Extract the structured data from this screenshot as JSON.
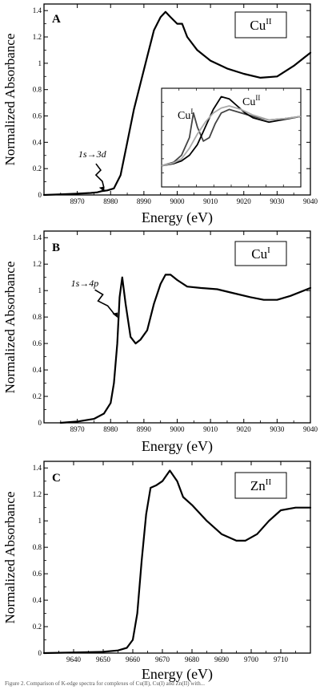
{
  "chart_data": [
    {
      "type": "line",
      "panel_label": "A",
      "badge": {
        "base": "Cu",
        "sup": "II"
      },
      "xlabel": "Energy (eV)",
      "ylabel": "Normalized Absorbance",
      "xlim": [
        8960,
        9040
      ],
      "ylim": [
        0,
        1.45
      ],
      "x_ticks": [
        "8970",
        "8980",
        "8990",
        "9000",
        "9010",
        "9020",
        "9030",
        "9040"
      ],
      "y_ticks": [
        "0",
        "0.2",
        "0.4",
        "0.6",
        "0.8",
        "1",
        "1.2",
        "1.4"
      ],
      "grid": false,
      "annotation": {
        "text": "1s→3d",
        "x": 8978,
        "y": 0.03
      },
      "series": [
        {
          "x": [
            8960,
            8965,
            8970,
            8974,
            8976,
            8977.5,
            8979,
            8981,
            8983,
            8985,
            8987,
            8989,
            8991,
            8993,
            8995,
            8996.5,
            8998,
            9000,
            9001.5,
            9003,
            9006,
            9010,
            9015,
            9020,
            9025,
            9030,
            9035,
            9040
          ],
          "y": [
            0.0,
            0.005,
            0.01,
            0.015,
            0.02,
            0.03,
            0.035,
            0.05,
            0.15,
            0.4,
            0.65,
            0.85,
            1.05,
            1.25,
            1.35,
            1.39,
            1.35,
            1.3,
            1.3,
            1.2,
            1.1,
            1.02,
            0.96,
            0.92,
            0.89,
            0.9,
            0.98,
            1.08
          ]
        }
      ],
      "inset": {
        "labels": [
          {
            "base": "Cu",
            "sup": "I"
          },
          {
            "base": "Cu",
            "sup": "II"
          }
        ],
        "xlim": [
          8975,
          9010
        ],
        "ylim": [
          0,
          1.4
        ],
        "series": [
          {
            "color": "#444444",
            "x": [
              8975,
              8978,
              8980,
              8982,
              8983,
              8984,
              8985.5,
              8987,
              8988.5,
              8990,
              8992,
              8995,
              8998,
              9002,
              9006,
              9010
            ],
            "y": [
              0.3,
              0.35,
              0.45,
              0.7,
              1.05,
              0.85,
              0.65,
              0.7,
              0.9,
              1.05,
              1.1,
              1.05,
              1.0,
              0.95,
              0.97,
              1.0
            ]
          },
          {
            "color": "#000000",
            "x": [
              8975,
              8978,
              8980,
              8982,
              8984,
              8986,
              8988,
              8990,
              8992,
              8994,
              8996,
              8998,
              9002,
              9006,
              9010
            ],
            "y": [
              0.3,
              0.33,
              0.37,
              0.45,
              0.6,
              0.85,
              1.1,
              1.28,
              1.25,
              1.15,
              1.05,
              0.98,
              0.92,
              0.96,
              1.0
            ]
          },
          {
            "color": "#aaaaaa",
            "x": [
              8975,
              8978,
              8980,
              8982,
              8984,
              8986,
              8988,
              8990,
              8992,
              8995,
              8998,
              9002,
              9006,
              9010
            ],
            "y": [
              0.3,
              0.34,
              0.4,
              0.55,
              0.75,
              0.92,
              1.05,
              1.12,
              1.15,
              1.1,
              1.02,
              0.95,
              0.97,
              1.0
            ]
          }
        ]
      }
    },
    {
      "type": "line",
      "panel_label": "B",
      "badge": {
        "base": "Cu",
        "sup": "I"
      },
      "xlabel": "Energy (eV)",
      "ylabel": "Normalized Absorbance",
      "xlim": [
        8960,
        9040
      ],
      "ylim": [
        0,
        1.45
      ],
      "x_ticks": [
        "8970",
        "8980",
        "8990",
        "9000",
        "9010",
        "9020",
        "9030",
        "9040"
      ],
      "y_ticks": [
        "0",
        "0.2",
        "0.4",
        "0.6",
        "0.8",
        "1",
        "1.2",
        "1.4"
      ],
      "grid": false,
      "annotation": {
        "text": "1s→4p",
        "x": 8982,
        "y": 0.8
      },
      "series": [
        {
          "x": [
            8965,
            8970,
            8975,
            8978,
            8980,
            8981,
            8982,
            8982.7,
            8983.5,
            8984.5,
            8986,
            8987.5,
            8989,
            8991,
            8993,
            8995,
            8996.5,
            8998,
            9000,
            9003,
            9007,
            9012,
            9017,
            9022,
            9026,
            9030,
            9034,
            9040
          ],
          "y": [
            0.0,
            0.01,
            0.03,
            0.07,
            0.15,
            0.3,
            0.6,
            0.95,
            1.1,
            0.9,
            0.65,
            0.6,
            0.63,
            0.7,
            0.9,
            1.05,
            1.12,
            1.12,
            1.08,
            1.03,
            1.02,
            1.01,
            0.98,
            0.95,
            0.93,
            0.93,
            0.96,
            1.02
          ]
        }
      ]
    },
    {
      "type": "line",
      "panel_label": "C",
      "badge": {
        "base": "Zn",
        "sup": "II"
      },
      "xlabel": "Energy (eV)",
      "ylabel": "Normalized Absorbance",
      "xlim": [
        9630,
        9720
      ],
      "ylim": [
        0,
        1.45
      ],
      "x_ticks": [
        "9640",
        "9650",
        "9660",
        "9670",
        "9680",
        "9690",
        "9700",
        "9710"
      ],
      "y_ticks": [
        "0",
        "0.2",
        "0.4",
        "0.6",
        "0.8",
        "1",
        "1.2",
        "1.4"
      ],
      "grid": false,
      "series": [
        {
          "x": [
            9630,
            9640,
            9650,
            9655,
            9658,
            9660,
            9661.5,
            9663,
            9664.5,
            9666,
            9668,
            9670,
            9672.5,
            9675,
            9677,
            9680,
            9685,
            9690,
            9695,
            9698,
            9702,
            9706,
            9710,
            9715,
            9720
          ],
          "y": [
            0.0,
            0.005,
            0.01,
            0.02,
            0.04,
            0.1,
            0.3,
            0.7,
            1.05,
            1.25,
            1.27,
            1.3,
            1.38,
            1.3,
            1.18,
            1.12,
            1.0,
            0.9,
            0.85,
            0.85,
            0.9,
            1.0,
            1.08,
            1.1,
            1.1
          ]
        }
      ]
    }
  ],
  "caption": "Figure 2. Comparison of K-edge spectra for complexes of Cu(II), Cu(I) and Zn(II) with..."
}
